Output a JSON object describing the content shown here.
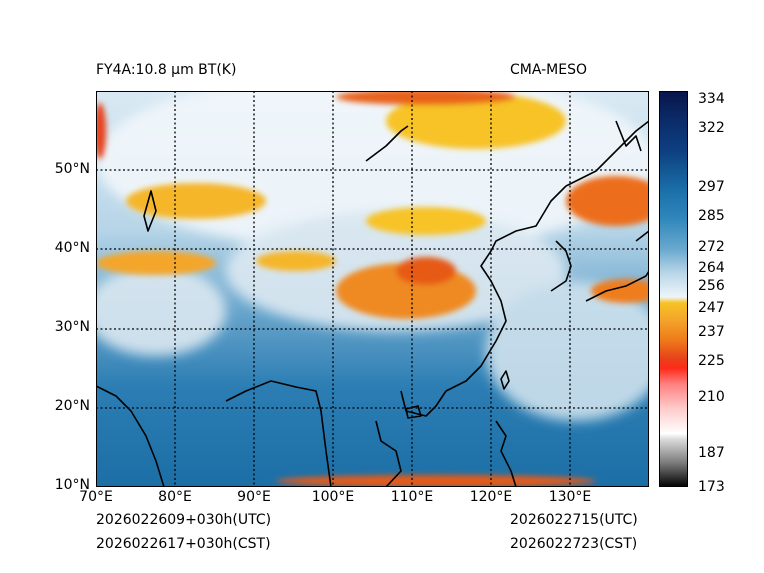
{
  "header": {
    "left_title": "FY4A:10.8 µm BT(K)",
    "right_title": "CMA-MESO"
  },
  "footer": {
    "init_utc": "2026022609+030h(UTC)",
    "init_cst": "2026022617+030h(CST)",
    "valid_utc": "2026022715(UTC)",
    "valid_cst": "2026022723(CST)"
  },
  "map": {
    "lon_labels": [
      "70°E",
      "80°E",
      "90°E",
      "100°E",
      "110°E",
      "120°E",
      "130°E"
    ],
    "lat_labels": [
      "10°N",
      "20°N",
      "30°N",
      "40°N",
      "50°N"
    ],
    "lon_range": [
      70,
      140
    ],
    "lat_range": [
      10,
      60
    ]
  },
  "colorbar": {
    "labels": [
      "334",
      "322",
      "297",
      "285",
      "272",
      "264",
      "256",
      "247",
      "237",
      "225",
      "210",
      "187",
      "173"
    ],
    "range": [
      173,
      336
    ]
  },
  "colors": {
    "ocean": "#1c6fa6",
    "cloud_white": "#eef5fa",
    "cloud_yellow": "#f7c325",
    "cloud_orange": "#ee7a1a",
    "coastline": "#000000"
  }
}
